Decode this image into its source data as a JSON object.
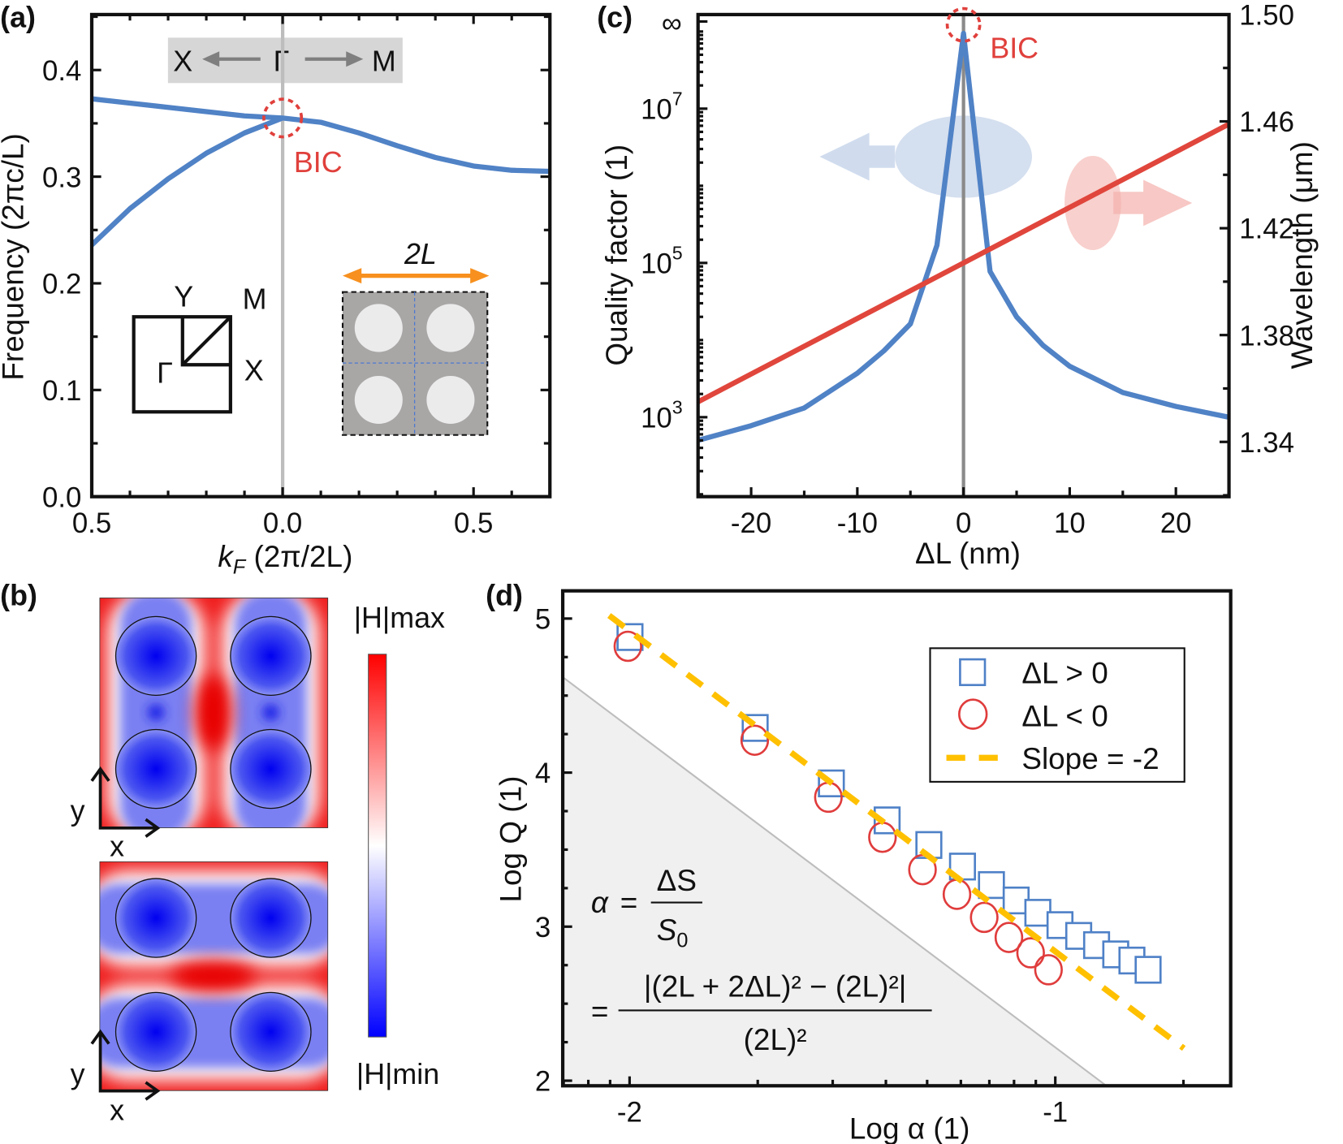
{
  "panel_labels": {
    "a": "(a)",
    "b": "(b)",
    "c": "(c)",
    "d": "(d)"
  },
  "colors": {
    "blue_line": "#5082c6",
    "red_line": "#e0463c",
    "bic": "#e0403c",
    "orange": "#f7901e",
    "slope": "#ffc000",
    "gray_line": "#bdbdbd"
  },
  "chart_data": [
    {
      "panel": "(a)",
      "type": "line",
      "xlabel": {
        "symbol": "k",
        "subscript": "F",
        "unit": " (2π/2L)"
      },
      "ylabel": "Frequency (2πc/L)",
      "xlim": [
        -0.5,
        0.7
      ],
      "ylim": [
        0,
        0.452
      ],
      "x_ticks": [
        -0.5,
        0,
        0.5
      ],
      "x_tick_labels": [
        "0.5",
        "0.0",
        "0.5"
      ],
      "y_ticks": [
        0,
        0.1,
        0.2,
        0.3,
        0.4
      ],
      "y_tick_labels": [
        "0.0",
        "0.1",
        "0.2",
        "0.3",
        "0.4"
      ],
      "grid": false,
      "series": [
        {
          "points": [
            [
              -0.5,
              0.373
            ],
            [
              -0.4,
              0.369
            ],
            [
              -0.3,
              0.365
            ],
            [
              -0.2,
              0.361
            ],
            [
              -0.1,
              0.357
            ],
            [
              0,
              0.355
            ],
            [
              0.1,
              0.351
            ],
            [
              0.2,
              0.341
            ],
            [
              0.3,
              0.329
            ],
            [
              0.4,
              0.318
            ],
            [
              0.5,
              0.31
            ],
            [
              0.6,
              0.306
            ],
            [
              0.7,
              0.305
            ]
          ]
        },
        {
          "points": [
            [
              -0.5,
              0.236
            ],
            [
              -0.4,
              0.27
            ],
            [
              -0.3,
              0.298
            ],
            [
              -0.2,
              0.322
            ],
            [
              -0.1,
              0.341
            ],
            [
              0,
              0.355
            ]
          ]
        }
      ],
      "path_label": {
        "left": "X",
        "center": "Γ",
        "right": "M"
      },
      "bic_label": "BIC",
      "brillouin_zone_labels": {
        "y": "Y",
        "m": "M",
        "gamma": "Γ",
        "x": "X"
      },
      "unit_cell_label": "2L"
    },
    {
      "panel": "(c)",
      "type": "line",
      "xlabel": "ΔL (nm)",
      "ylabel_left": "Quality factor (1)",
      "ylabel_right": "Wavelength (μm)",
      "xlim": [
        -25,
        25
      ],
      "ylim_left_log10": [
        1.97,
        8.22
      ],
      "y_scale_left": "log",
      "ylim_right": [
        1.3195,
        1.5
      ],
      "x_ticks": [
        -20,
        -10,
        0,
        10,
        20
      ],
      "x_tick_labels": [
        "-20",
        "-10",
        "0",
        "10",
        "20"
      ],
      "y_left_ticks": [
        {
          "base": "10",
          "exp": "3",
          "log": 3
        },
        {
          "base": "10",
          "exp": "5",
          "log": 5
        },
        {
          "base": "10",
          "exp": "7",
          "log": 7
        }
      ],
      "y_left_infinity_label": "∞",
      "y_right_ticks": [
        1.34,
        1.38,
        1.42,
        1.46,
        1.5
      ],
      "y_right_tick_labels": [
        "1.34",
        "1.38",
        "1.42",
        "1.46",
        "1.50"
      ],
      "series": [
        {
          "axis": "left",
          "color": "#5082c6",
          "x": [
            -25,
            -20,
            -15,
            -10,
            -7.5,
            -5,
            -2.5,
            0,
            2.5,
            5,
            7.5,
            10,
            15,
            20,
            25
          ],
          "log10_Q": [
            2.7,
            2.89,
            3.12,
            3.57,
            3.86,
            4.21,
            5.23,
            "∞",
            4.89,
            4.3,
            3.93,
            3.66,
            3.32,
            3.14,
            3.0
          ]
        },
        {
          "axis": "right",
          "color": "#e0463c",
          "x": [
            -25,
            25
          ],
          "wavelength_um": [
            1.355,
            1.459
          ]
        }
      ],
      "bic_label": "BIC"
    },
    {
      "panel": "(b)",
      "type": "heatmap",
      "colorbar_max_label": "|H|max",
      "colorbar_min_label": "|H|min",
      "colormap": [
        "#ff0000",
        "#ffffff",
        "#0000ff"
      ],
      "axis_x": "x",
      "axis_y": "y"
    },
    {
      "panel": "(d)",
      "type": "scatter",
      "xlabel": "Log α (1)",
      "ylabel": "Log Q (1)",
      "xlim": [
        -2.157,
        -0.588
      ],
      "ylim": [
        1.967,
        5.18
      ],
      "x_ticks": [
        -2,
        -1
      ],
      "x_tick_labels": [
        "-2",
        "-1"
      ],
      "y_ticks": [
        2,
        3,
        4,
        5
      ],
      "y_tick_labels": [
        "2",
        "3",
        "4",
        "5"
      ],
      "series": [
        {
          "name": "ΔL > 0",
          "marker": "square",
          "color": "#4f81c7",
          "x": [
            -2,
            -1.706,
            -1.527,
            -1.396,
            -1.298,
            -1.219,
            -1.151,
            -1.093,
            -1.042,
            -0.99,
            -0.946,
            -0.904,
            -0.859,
            -0.821,
            -0.783
          ],
          "y": [
            4.88,
            4.29,
            3.93,
            3.69,
            3.53,
            3.39,
            3.27,
            3.17,
            3.09,
            3.01,
            2.94,
            2.88,
            2.82,
            2.78,
            2.72
          ]
        },
        {
          "name": "ΔL < 0",
          "marker": "circle",
          "color": "#e03c3c",
          "x": [
            -2.004,
            -1.706,
            -1.533,
            -1.406,
            -1.312,
            -1.231,
            -1.167,
            -1.109,
            -1.058,
            -1.016
          ],
          "y": [
            4.82,
            4.21,
            3.84,
            3.58,
            3.37,
            3.21,
            3.06,
            2.93,
            2.83,
            2.72
          ]
        },
        {
          "name": "Slope = -2",
          "marker": "dashed-line",
          "color": "#ffc000",
          "x": [
            -2.048,
            -0.698
          ],
          "y": [
            5.02,
            2.21
          ]
        }
      ],
      "shaded_region": {
        "x": [
          -2.157,
          -0.88,
          -2.157
        ],
        "y": [
          4.62,
          1.967,
          1.967
        ],
        "color": "#f0f0f0"
      },
      "legend_position": "top-right",
      "formula": {
        "alpha": "α",
        "equals": "=",
        "num1": "ΔS",
        "den1_base": "S",
        "den1_sub": "0",
        "num2": "|(2L + 2ΔL)² − (2L)²|",
        "den2": "(2L)²"
      }
    }
  ]
}
